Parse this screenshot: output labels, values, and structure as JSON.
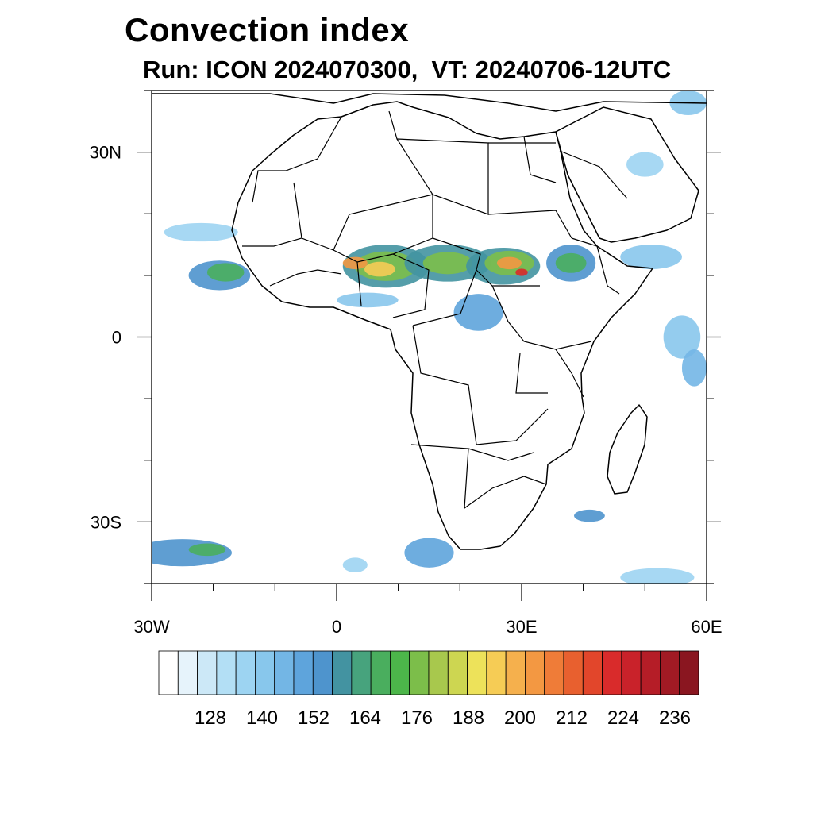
{
  "title": "Convection index",
  "subtitle": "Run: ICON 2024070300,  VT: 20240706-12UTC",
  "map": {
    "extent": {
      "lon": [
        -30,
        60
      ],
      "lat": [
        -40,
        40
      ]
    },
    "lat_labels": [
      {
        "lat": 30,
        "text": "30N"
      },
      {
        "lat": 0,
        "text": "0"
      },
      {
        "lat": -30,
        "text": "30S"
      }
    ],
    "lon_labels": [
      {
        "lon": -30,
        "text": "30W"
      },
      {
        "lon": 0,
        "text": "0"
      },
      {
        "lon": 30,
        "text": "30E"
      },
      {
        "lon": 60,
        "text": "60E"
      }
    ],
    "lat_minor": [
      -40,
      -20,
      -10,
      10,
      20,
      40
    ],
    "lon_minor": [
      -20,
      -10,
      10,
      20,
      40,
      50
    ]
  },
  "colorbar": {
    "colors": [
      "#ffffff",
      "#e6f3fb",
      "#cce8f7",
      "#b3dff5",
      "#9dd4f2",
      "#88c7ec",
      "#73b6e5",
      "#5ea4dc",
      "#4e94cd",
      "#4393a1",
      "#47a37d",
      "#4aae5e",
      "#4cb64a",
      "#7cbe4a",
      "#a8c84d",
      "#cdd651",
      "#ede25a",
      "#f6cc55",
      "#f5b04d",
      "#f39842",
      "#ef7c38",
      "#e8602f",
      "#e2462b",
      "#d92b2b",
      "#c9222a",
      "#b51d27",
      "#a11a24",
      "#8a1620"
    ],
    "labels": [
      "128",
      "140",
      "152",
      "164",
      "176",
      "188",
      "200",
      "212",
      "224",
      "236"
    ]
  },
  "field_blobs": [
    {
      "lon": 8,
      "lat": 11.5,
      "rx": 7,
      "ry": 3.5,
      "level": 9
    },
    {
      "lon": 8,
      "lat": 11.5,
      "rx": 5,
      "ry": 2.4,
      "level": 13
    },
    {
      "lon": 7,
      "lat": 11,
      "rx": 2.5,
      "ry": 1.2,
      "level": 17
    },
    {
      "lon": 3,
      "lat": 12,
      "rx": 2,
      "ry": 1,
      "level": 19
    },
    {
      "lon": 18,
      "lat": 12,
      "rx": 7,
      "ry": 3,
      "level": 9
    },
    {
      "lon": 18,
      "lat": 12,
      "rx": 4,
      "ry": 1.8,
      "level": 13
    },
    {
      "lon": 27,
      "lat": 11.5,
      "rx": 6,
      "ry": 3,
      "level": 9
    },
    {
      "lon": 28,
      "lat": 12,
      "rx": 4,
      "ry": 2,
      "level": 13
    },
    {
      "lon": 28,
      "lat": 12,
      "rx": 2,
      "ry": 1,
      "level": 19
    },
    {
      "lon": 30,
      "lat": 10.5,
      "rx": 1,
      "ry": 0.6,
      "level": 23
    },
    {
      "lon": 38,
      "lat": 12,
      "rx": 4,
      "ry": 3,
      "level": 8
    },
    {
      "lon": 38,
      "lat": 12,
      "rx": 2.5,
      "ry": 1.6,
      "level": 11
    },
    {
      "lon": 23,
      "lat": 4,
      "rx": 4,
      "ry": 3,
      "level": 7
    },
    {
      "lon": -19,
      "lat": 10,
      "rx": 5,
      "ry": 2.4,
      "level": 8
    },
    {
      "lon": -18,
      "lat": 10.5,
      "rx": 3,
      "ry": 1.5,
      "level": 11
    },
    {
      "lon": -22,
      "lat": 17,
      "rx": 6,
      "ry": 1.5,
      "level": 4
    },
    {
      "lon": 5,
      "lat": 6,
      "rx": 5,
      "ry": 1.2,
      "level": 5
    },
    {
      "lon": -25,
      "lat": -35,
      "rx": 8,
      "ry": 2.2,
      "level": 8
    },
    {
      "lon": -21,
      "lat": -34.5,
      "rx": 3,
      "ry": 1,
      "level": 11
    },
    {
      "lon": 15,
      "lat": -35,
      "rx": 4,
      "ry": 2.4,
      "level": 7
    },
    {
      "lon": 41,
      "lat": -29,
      "rx": 2.5,
      "ry": 1,
      "level": 8
    },
    {
      "lon": 56,
      "lat": 0,
      "rx": 3,
      "ry": 3.5,
      "level": 5
    },
    {
      "lon": 58,
      "lat": -5,
      "rx": 2,
      "ry": 3,
      "level": 6
    },
    {
      "lon": 52,
      "lat": -39,
      "rx": 6,
      "ry": 1.5,
      "level": 4
    },
    {
      "lon": 57,
      "lat": 38,
      "rx": 3,
      "ry": 2,
      "level": 5
    },
    {
      "lon": 51,
      "lat": 13,
      "rx": 5,
      "ry": 2,
      "level": 5
    },
    {
      "lon": 3,
      "lat": -37,
      "rx": 2,
      "ry": 1.2,
      "level": 4
    },
    {
      "lon": 50,
      "lat": 28,
      "rx": 3,
      "ry": 2,
      "level": 4
    }
  ]
}
